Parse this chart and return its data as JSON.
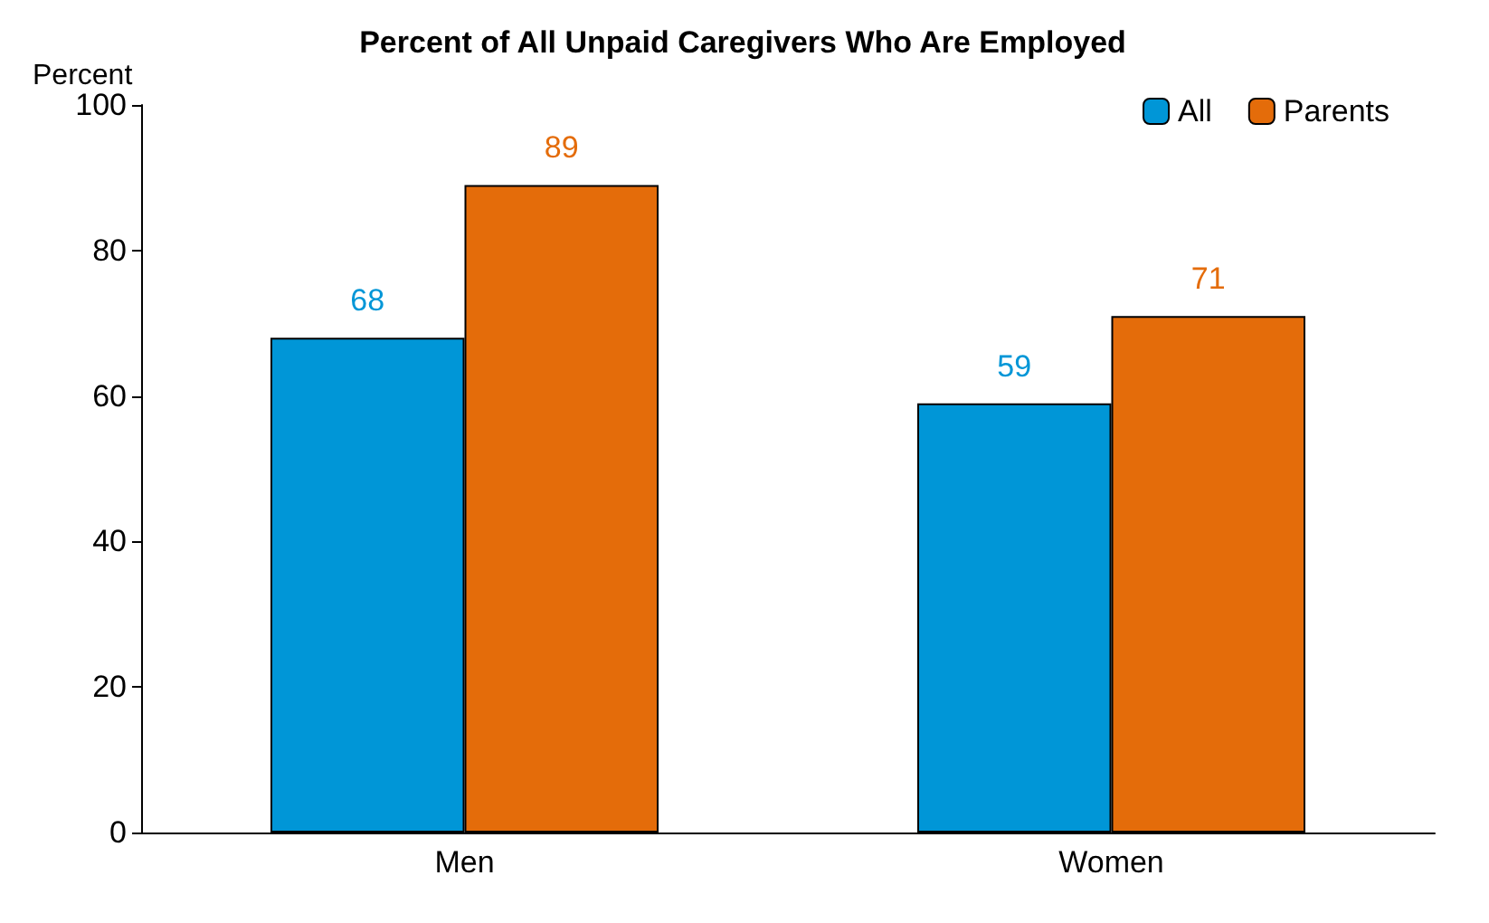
{
  "chart_data": {
    "type": "bar",
    "title": "Percent of All Unpaid Caregivers Who Are Employed",
    "ylabel": "Percent",
    "categories": [
      "Men",
      "Women"
    ],
    "series": [
      {
        "name": "All",
        "color": "#0096d7",
        "values": [
          68,
          59
        ]
      },
      {
        "name": "Parents",
        "color": "#e46c0a",
        "values": [
          89,
          71
        ]
      }
    ],
    "ylim": [
      0,
      100
    ],
    "yticks": [
      0,
      20,
      40,
      60,
      80,
      100
    ],
    "grid": false,
    "legend": "top right",
    "data_labels": true
  }
}
